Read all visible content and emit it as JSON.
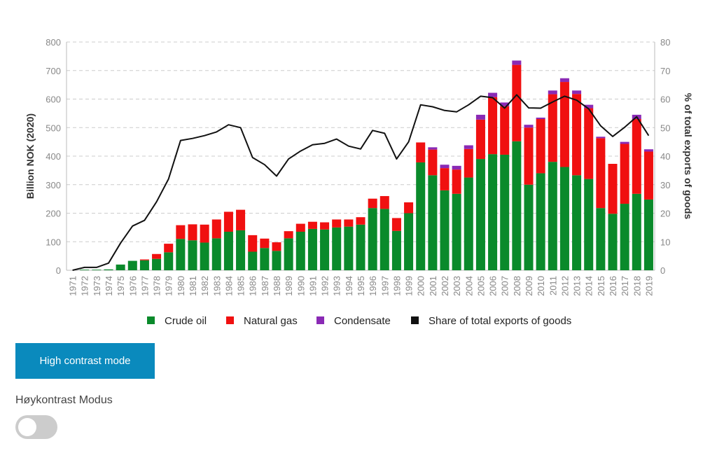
{
  "chart_data": {
    "type": "bar",
    "stacked": true,
    "categories": [
      "1971",
      "1972",
      "1973",
      "1974",
      "1975",
      "1976",
      "1977",
      "1978",
      "1979",
      "1980",
      "1981",
      "1982",
      "1983",
      "1984",
      "1985",
      "1986",
      "1987",
      "1988",
      "1989",
      "1990",
      "1991",
      "1992",
      "1993",
      "1994",
      "1995",
      "1996",
      "1997",
      "1998",
      "1999",
      "2000",
      "2001",
      "2002",
      "2003",
      "2004",
      "2005",
      "2006",
      "2007",
      "2008",
      "2009",
      "2010",
      "2011",
      "2012",
      "2013",
      "2014",
      "2015",
      "2016",
      "2017",
      "2018",
      "2019"
    ],
    "series": [
      {
        "name": "Crude oil",
        "color": "#0a8a2b",
        "type": "bar",
        "values": [
          0,
          2,
          2,
          3,
          20,
          33,
          35,
          40,
          63,
          110,
          105,
          97,
          112,
          135,
          140,
          65,
          78,
          68,
          112,
          135,
          145,
          143,
          150,
          153,
          160,
          218,
          215,
          138,
          200,
          378,
          333,
          280,
          268,
          325,
          390,
          407,
          405,
          452,
          300,
          340,
          380,
          362,
          333,
          320,
          218,
          198,
          233,
          268,
          248
        ]
      },
      {
        "name": "Natural gas",
        "color": "#f01010",
        "type": "bar",
        "values": [
          0,
          0,
          0,
          0,
          0,
          0,
          3,
          17,
          30,
          48,
          56,
          63,
          66,
          70,
          72,
          58,
          33,
          30,
          25,
          28,
          25,
          25,
          28,
          25,
          26,
          33,
          45,
          45,
          38,
          70,
          90,
          78,
          85,
          100,
          138,
          200,
          170,
          268,
          200,
          190,
          237,
          298,
          285,
          248,
          245,
          175,
          210,
          262,
          168
        ]
      },
      {
        "name": "Condensate",
        "color": "#8a2ab5",
        "type": "bar",
        "values": [
          0,
          0,
          0,
          0,
          0,
          0,
          0,
          0,
          0,
          0,
          0,
          0,
          0,
          0,
          0,
          0,
          0,
          0,
          0,
          0,
          0,
          0,
          0,
          0,
          0,
          0,
          0,
          0,
          0,
          0,
          8,
          12,
          13,
          13,
          17,
          15,
          13,
          15,
          10,
          5,
          13,
          13,
          12,
          12,
          5,
          0,
          7,
          15,
          8
        ]
      },
      {
        "name": "Share of total exports of goods",
        "color": "#111111",
        "type": "line",
        "axis": "right",
        "values": [
          0,
          1,
          1,
          2.5,
          9.5,
          15.5,
          17.5,
          24,
          32,
          45.5,
          46.2,
          47.2,
          48.5,
          51,
          50,
          39.5,
          37,
          33,
          39,
          41.8,
          44,
          44.5,
          46,
          43.5,
          42.5,
          49,
          48,
          39,
          45,
          58,
          57.3,
          56,
          55.5,
          58,
          61,
          60.5,
          56.8,
          61.5,
          56.9,
          56.8,
          59,
          61,
          59.6,
          56.6,
          50.6,
          46.9,
          50.1,
          53.8,
          47.2
        ]
      }
    ],
    "ylabel": "Billion NOK (2020)",
    "ylim": [
      0,
      800
    ],
    "yticks": [
      0,
      100,
      200,
      300,
      400,
      500,
      600,
      700,
      800
    ],
    "y2label": "% of total exports of goods",
    "y2lim": [
      0,
      80
    ],
    "y2ticks": [
      0,
      10,
      20,
      30,
      40,
      50,
      60,
      70,
      80
    ],
    "grid": true,
    "legend_position": "bottom"
  },
  "controls": {
    "high_contrast_button": "High contrast mode",
    "toggle_label": "Høykontrast Modus",
    "toggle_on": false
  }
}
